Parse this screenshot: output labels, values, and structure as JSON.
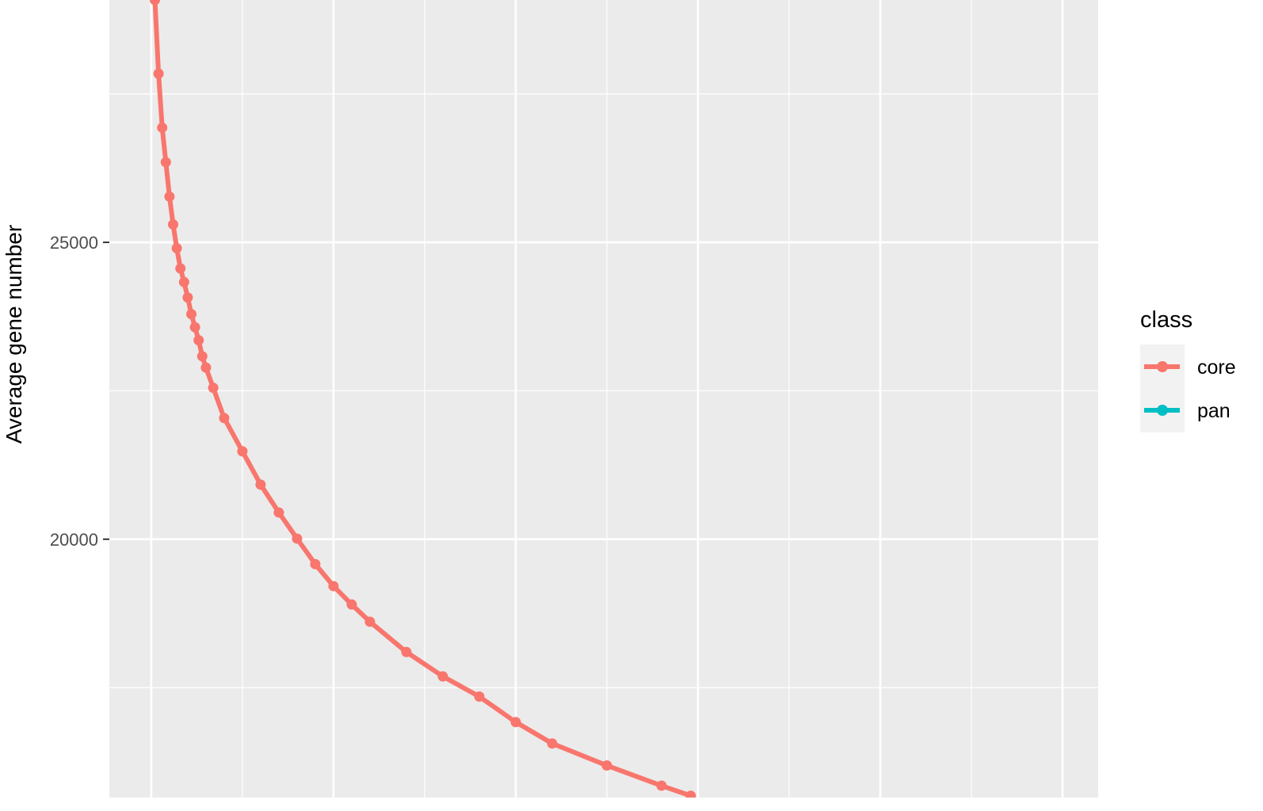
{
  "chart_data": {
    "type": "line",
    "title": "",
    "xlabel": "",
    "ylabel": "Average gene number",
    "ylim": [
      15650,
      29080
    ],
    "xlim": [
      -11.5,
      259.8
    ],
    "y_ticks": [
      20000,
      25000
    ],
    "y_tick_labels": [
      "20000",
      "25000"
    ],
    "grid": true,
    "legend": {
      "title": "class",
      "position": "right",
      "entries": [
        "core",
        "pan"
      ]
    },
    "colors": {
      "core": "#F8766D",
      "pan": "#00BFC4",
      "panel": "#EBEBEB",
      "grid": "#FFFFFF"
    },
    "series": [
      {
        "name": "core",
        "x": [
          1,
          2,
          3,
          4,
          5,
          6,
          7,
          8,
          9,
          10,
          11,
          12,
          13,
          14,
          15,
          17,
          20,
          25,
          30,
          35,
          40,
          45,
          50,
          55,
          60,
          70,
          80,
          90,
          100,
          110,
          125,
          140,
          148
        ],
        "y": [
          29080,
          27840,
          26930,
          26350,
          25770,
          25300,
          24900,
          24560,
          24330,
          24070,
          23790,
          23570,
          23350,
          23080,
          22890,
          22550,
          22040,
          21480,
          20920,
          20450,
          20010,
          19580,
          19210,
          18900,
          18610,
          18100,
          17690,
          17350,
          16920,
          16560,
          16190,
          15850,
          15680
        ]
      }
    ]
  }
}
